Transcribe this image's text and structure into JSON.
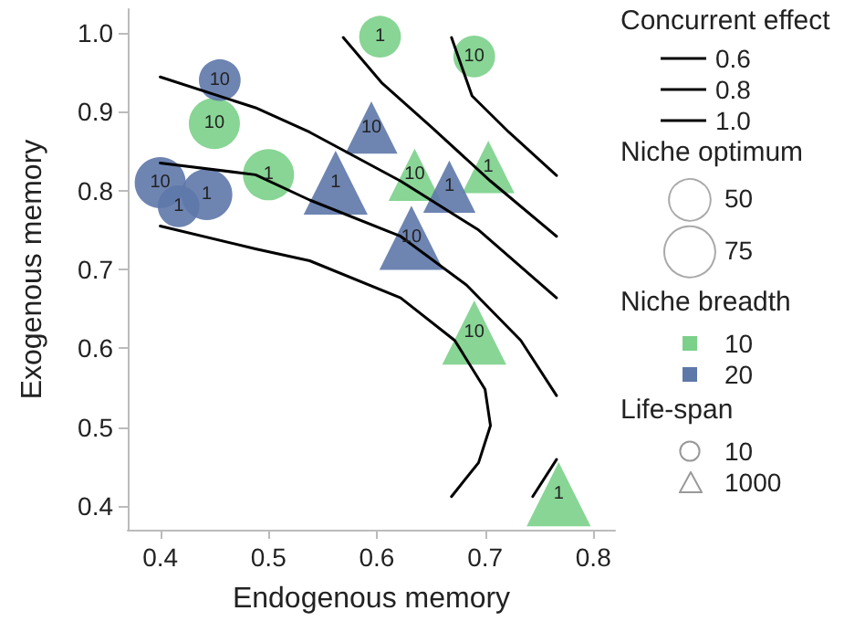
{
  "chart_data": {
    "type": "bubble",
    "xlabel": "Endogenous memory",
    "ylabel": "Exogenous memory",
    "legend_title": "Concurrent effect",
    "legend": "right",
    "grid": false,
    "xlim": [
      0.37,
      0.82
    ],
    "xticks": [
      0.4,
      0.5,
      0.6,
      0.7,
      0.8
    ],
    "ylim": [
      0.37,
      1.03
    ],
    "yticks": [
      0.4,
      0.5,
      0.6,
      0.7,
      0.8,
      0.9,
      {
        "value": 1,
        "label": "1.0"
      }
    ],
    "size_legend": [
      50,
      75
    ],
    "annotations": [
      "Niche optimum",
      "Niche breadth",
      "10",
      "20",
      "Life-span",
      "10",
      "1000",
      {
        "text": "10",
        "x": 0.45,
        "y": 0.885
      },
      {
        "text": "1",
        "x": 0.5,
        "y": 0.82
      },
      {
        "text": "1",
        "x": 0.603,
        "y": 0.995
      },
      {
        "text": "10",
        "x": 0.69,
        "y": 0.97
      },
      {
        "text": "10",
        "x": 0.4,
        "y": 0.81
      },
      {
        "text": "1",
        "x": 0.417,
        "y": 0.78
      },
      {
        "text": "1",
        "x": 0.443,
        "y": 0.795
      },
      {
        "text": "10",
        "x": 0.455,
        "y": 0.94
      },
      {
        "text": "10",
        "x": 0.635,
        "y": 0.82
      },
      {
        "text": "1",
        "x": 0.703,
        "y": 0.83
      },
      {
        "text": "10",
        "x": 0.69,
        "y": 0.62
      },
      {
        "text": "1",
        "x": 0.768,
        "y": 0.415
      },
      {
        "text": "1",
        "x": 0.562,
        "y": 0.81
      },
      {
        "text": "10",
        "x": 0.595,
        "y": 0.88
      },
      {
        "text": "10",
        "x": 0.632,
        "y": 0.74
      },
      {
        "text": "1",
        "x": 0.667,
        "y": 0.805
      }
    ],
    "series": [
      {
        "type": "line",
        "name": "0.6",
        "color": "#000000",
        "line_style": "solid",
        "marker": "none",
        "x": [
          0.4,
          0.488,
          0.538,
          0.622,
          0.672,
          0.7,
          0.705,
          0.694,
          0.669
        ],
        "values": [
          0.755,
          0.726,
          0.711,
          0.664,
          0.61,
          0.548,
          0.502,
          0.455,
          0.412
        ]
      },
      {
        "type": "line",
        "color": "#000000",
        "line_style": "solid",
        "marker": "none",
        "x": [
          0.569,
          0.605,
          0.65,
          0.705,
          0.766
        ],
        "values": [
          0.994,
          0.936,
          0.881,
          0.812,
          0.742
        ]
      },
      {
        "type": "line",
        "name": "0.8",
        "color": "#000000",
        "line_style": "solid",
        "marker": "none",
        "x": [
          0.4,
          0.488,
          0.538,
          0.622,
          0.683,
          0.733,
          0.766
        ],
        "values": [
          0.835,
          0.82,
          0.788,
          0.742,
          0.68,
          0.61,
          0.54
        ]
      },
      {
        "type": "line",
        "color": "#000000",
        "line_style": "solid",
        "marker": "none",
        "x": [
          0.766,
          0.744
        ],
        "values": [
          0.459,
          0.412
        ]
      },
      {
        "type": "line",
        "name": "1.0",
        "color": "#000000",
        "line_style": "solid",
        "marker": "none",
        "x": [
          0.4,
          0.488,
          0.538,
          0.622,
          0.694,
          0.766
        ],
        "values": [
          0.944,
          0.905,
          0.874,
          0.812,
          0.75,
          0.664
        ]
      },
      {
        "type": "line",
        "color": "#000000",
        "line_style": "solid",
        "marker": "none",
        "x": [
          0.669,
          0.688,
          0.722,
          0.766
        ],
        "values": [
          0.994,
          0.92,
          0.874,
          0.819
        ]
      },
      {
        "color": "#7bd08a",
        "marker": "circle",
        "x": [
          0.45,
          0.5,
          0.603,
          0.69
        ],
        "values": [
          0.885,
          0.82,
          0.995,
          0.97
        ],
        "sizes": [
          75,
          75,
          50,
          50
        ]
      },
      {
        "color": "#5e78aa",
        "marker": "circle",
        "x": [
          0.4,
          0.417,
          0.443,
          0.455
        ],
        "values": [
          0.81,
          0.78,
          0.795,
          0.94
        ],
        "sizes": [
          75,
          50,
          75,
          50
        ]
      },
      {
        "color": "#7bd08a",
        "marker": "triangle",
        "x": [
          0.635,
          0.703,
          0.69,
          0.768
        ],
        "values": [
          0.82,
          0.83,
          0.62,
          0.415
        ],
        "sizes": [
          50,
          50,
          75,
          75
        ]
      },
      {
        "color": "#5e78aa",
        "marker": "triangle",
        "x": [
          0.562,
          0.595,
          0.632,
          0.667
        ],
        "values": [
          0.81,
          0.88,
          0.74,
          0.805
        ],
        "sizes": [
          75,
          50,
          75,
          50
        ]
      }
    ]
  }
}
